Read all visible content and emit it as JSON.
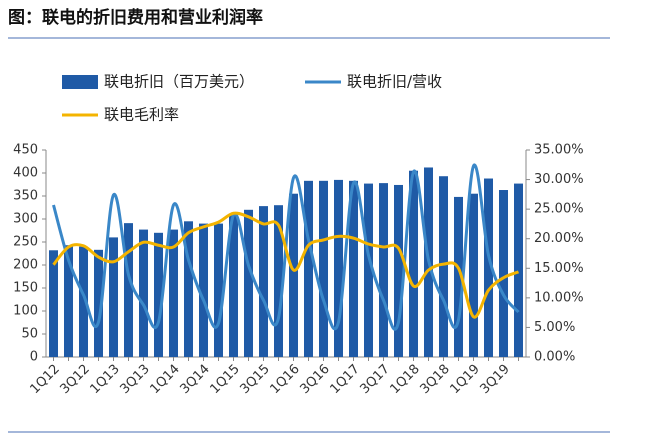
{
  "chart_data": {
    "type": "bar_line",
    "title": "图：联电的折旧费用和营业利润率",
    "categories": [
      "1Q12",
      null,
      "3Q12",
      null,
      "1Q13",
      null,
      "3Q13",
      null,
      "1Q14",
      null,
      "3Q14",
      null,
      "1Q15",
      null,
      "3Q15",
      null,
      "1Q16",
      null,
      "3Q16",
      null,
      "1Q17",
      null,
      "3Q17",
      null,
      "1Q18",
      null,
      "3Q18",
      null,
      "1Q19",
      null,
      "3Q19",
      null
    ],
    "series": [
      {
        "name": "联电折旧（百万美元）",
        "type": "bar",
        "color": "#1f5aa6",
        "values": [
          232,
          243,
          240,
          233,
          260,
          291,
          277,
          270,
          277,
          295,
          290,
          290,
          310,
          320,
          328,
          330,
          355,
          383,
          383,
          385,
          383,
          377,
          378,
          374,
          405,
          412,
          393,
          348,
          355,
          388,
          363,
          377
        ]
      },
      {
        "name": "联电折旧/营收",
        "type": "line",
        "axis": "y2",
        "color": "#3a87c8",
        "values": [
          25.7,
          16.4,
          10.5,
          5.9,
          27.4,
          13.9,
          8.8,
          5.9,
          25.7,
          16.4,
          9.6,
          5.7,
          24,
          15.5,
          9.6,
          6.6,
          30.3,
          19.8,
          9.6,
          5.9,
          29.4,
          17.2,
          9.6,
          5.9,
          31.3,
          16.4,
          9.6,
          6.3,
          32.3,
          17.2,
          10.5,
          7.6
        ]
      },
      {
        "name": "联电毛利率",
        "type": "line",
        "axis": "y2",
        "color": "#f4b400",
        "values": [
          15.6,
          18.6,
          18.8,
          16.9,
          16.1,
          17.8,
          19.4,
          18.9,
          18.6,
          21,
          22,
          22.8,
          24.3,
          23.7,
          22.5,
          22.3,
          14.7,
          18.9,
          19.8,
          20.4,
          20.1,
          19.1,
          18.6,
          18.4,
          12,
          14.7,
          15.7,
          15,
          6.8,
          11.3,
          13.4,
          14.4
        ]
      }
    ],
    "ylim": [
      0,
      450
    ],
    "yticks": [
      0,
      50,
      100,
      150,
      200,
      250,
      300,
      350,
      400,
      450
    ],
    "y2lim": [
      0,
      35
    ],
    "y2ticks": [
      {
        "value": 0,
        "label": "0.00%"
      },
      {
        "value": 5,
        "label": "5.00%"
      },
      {
        "value": 10,
        "label": "10.00%"
      },
      {
        "value": 15,
        "label": "15.00%"
      },
      {
        "value": 20,
        "label": "20.00%"
      },
      {
        "value": 25,
        "label": "25.00%"
      },
      {
        "value": 30,
        "label": "30.00%"
      },
      {
        "value": 35,
        "label": "35.00%"
      }
    ]
  }
}
